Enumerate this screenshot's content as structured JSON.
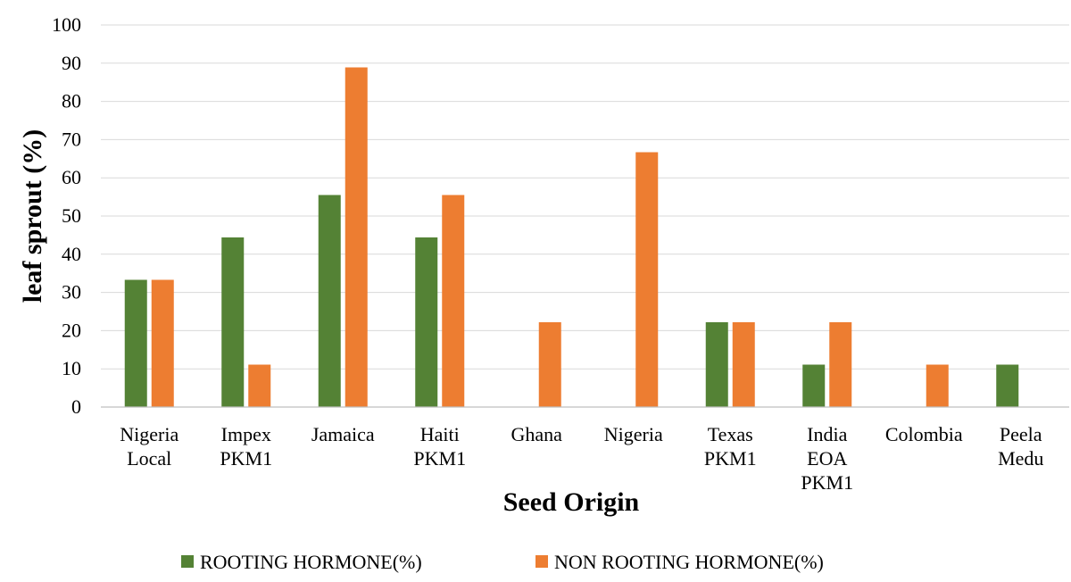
{
  "chart_data": {
    "type": "bar",
    "categories": [
      [
        "Nigeria",
        "Local"
      ],
      [
        "Impex",
        "PKM1"
      ],
      [
        "Jamaica"
      ],
      [
        "Haiti",
        "PKM1"
      ],
      [
        "Ghana"
      ],
      [
        "Nigeria"
      ],
      [
        "Texas",
        "PKM1"
      ],
      [
        "India",
        "EOA",
        "PKM1"
      ],
      [
        "Colombia"
      ],
      [
        "Peela",
        "Medu"
      ]
    ],
    "series": [
      {
        "name": "ROOTING HORMONE(%)",
        "color": "#548235",
        "values": [
          33.3,
          44.4,
          55.5,
          44.4,
          0,
          0,
          22.2,
          11.1,
          0,
          11.1
        ]
      },
      {
        "name": "NON ROOTING HORMONE(%)",
        "color": "#ed7d31",
        "values": [
          33.3,
          11.1,
          88.9,
          55.5,
          22.2,
          66.7,
          22.2,
          22.2,
          11.1,
          0
        ]
      }
    ],
    "xlabel": "Seed Origin",
    "ylabel": "leaf sprout (%)",
    "ylim": [
      0,
      100
    ],
    "yticks": [
      0,
      10,
      20,
      30,
      40,
      50,
      60,
      70,
      80,
      90,
      100
    ],
    "grid": true,
    "legend": "bottom"
  }
}
